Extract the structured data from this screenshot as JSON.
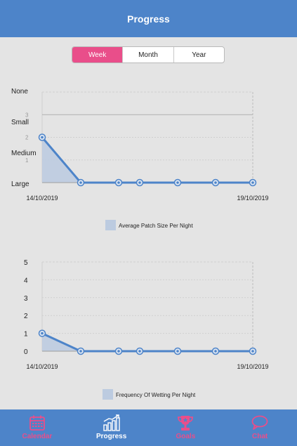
{
  "header": {
    "title": "Progress"
  },
  "segmented": {
    "selected": "Week",
    "options": [
      {
        "label": "Week"
      },
      {
        "label": "Month"
      },
      {
        "label": "Year"
      }
    ]
  },
  "colors": {
    "header": "#4d84c9",
    "accent_pink": "#e94e8a",
    "line": "#4d84c9",
    "area_fill": "#bccbe0",
    "tab_inactive": "#e94e8a",
    "tab_active": "#ffffff"
  },
  "chart_data": [
    {
      "type": "line",
      "title": "",
      "xlabel": "",
      "ylabel": "",
      "x": [
        "14/10/2019",
        "15/10/2019",
        "16/10/2019",
        "17/10/2019",
        "18/10/2019",
        "19/10/2019",
        "19/10/2019"
      ],
      "x_tick_labels": [
        "14/10/2019",
        "19/10/2019"
      ],
      "y_tick_labels": [
        "None",
        "Small",
        "Medium",
        "Large"
      ],
      "y_numeric_ticks": [
        "1",
        "2",
        "3"
      ],
      "ylim": [
        0,
        4
      ],
      "series": [
        {
          "name": "Average Patch Size Per Night",
          "values": [
            2,
            0,
            0,
            0,
            0,
            0,
            0
          ]
        }
      ],
      "legend": "bottom",
      "grid": true
    },
    {
      "type": "line",
      "title": "",
      "xlabel": "",
      "ylabel": "",
      "x": [
        "14/10/2019",
        "15/10/2019",
        "16/10/2019",
        "17/10/2019",
        "18/10/2019",
        "19/10/2019",
        "19/10/2019"
      ],
      "x_tick_labels": [
        "14/10/2019",
        "19/10/2019"
      ],
      "y_tick_labels": [
        "0",
        "1",
        "2",
        "3",
        "4",
        "5"
      ],
      "ylim": [
        0,
        5
      ],
      "series": [
        {
          "name": "Frequency Of Wetting Per Night",
          "values": [
            1,
            0,
            0,
            0,
            0,
            0,
            0
          ]
        }
      ],
      "legend": "bottom",
      "grid": true
    }
  ],
  "tabbar": {
    "items": [
      {
        "label": "Calendar",
        "icon": "calendar-icon",
        "active": false
      },
      {
        "label": "Progress",
        "icon": "chart-icon",
        "active": true
      },
      {
        "label": "Goals",
        "icon": "trophy-icon",
        "active": false
      },
      {
        "label": "Chat",
        "icon": "chat-bubble-icon",
        "active": false
      }
    ]
  }
}
